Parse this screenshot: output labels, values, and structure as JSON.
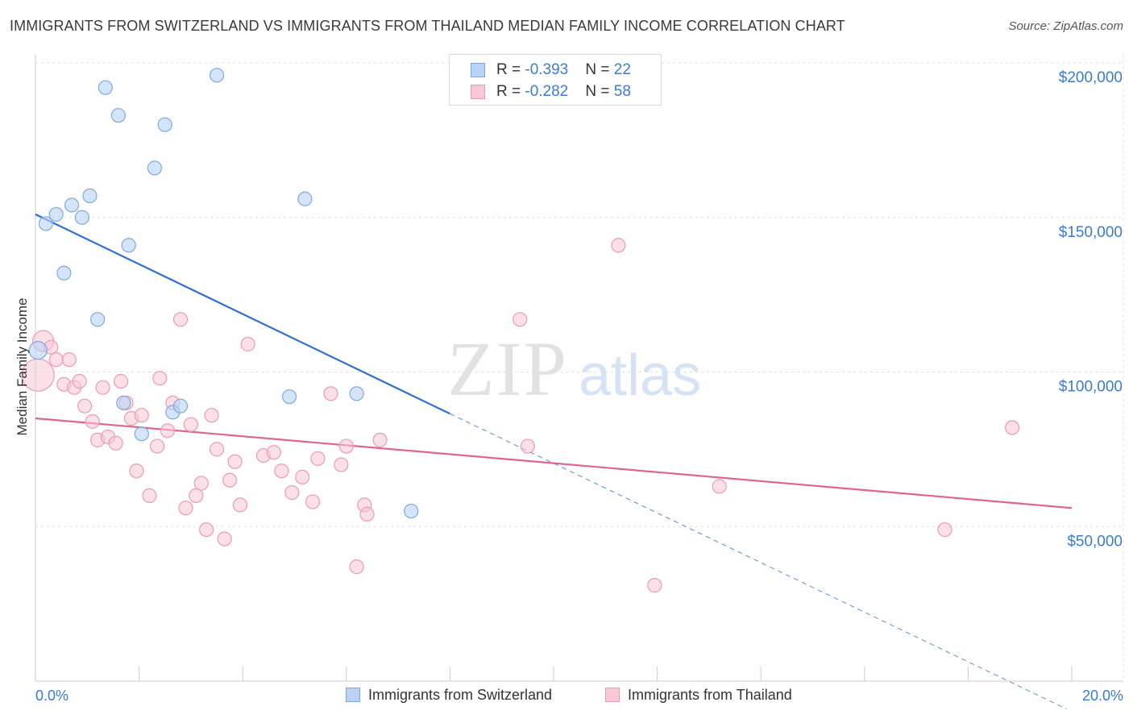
{
  "title": "IMMIGRANTS FROM SWITZERLAND VS IMMIGRANTS FROM THAILAND MEDIAN FAMILY INCOME CORRELATION CHART",
  "source": "Source: ZipAtlas.com",
  "watermark": {
    "zip": "ZIP",
    "atlas": "atlas"
  },
  "colors": {
    "switzerland_fill": "#b8d3f5",
    "switzerland_stroke": "#7fa9de",
    "switzerland_line": "#2f6fd0",
    "thailand_fill": "#f9c7d6",
    "thailand_stroke": "#ec9bb4",
    "thailand_line": "#e0648f",
    "axis_label": "#3a7bd5",
    "grid": "#dddddd"
  },
  "stats_legend": [
    {
      "r_label": "R = ",
      "r_value": "-0.393",
      "n_label": "N = ",
      "n_value": "22"
    },
    {
      "r_label": "R = ",
      "r_value": "-0.282",
      "n_label": "N = ",
      "n_value": "58"
    }
  ],
  "chart_data": {
    "type": "scatter",
    "title": "IMMIGRANTS FROM SWITZERLAND VS IMMIGRANTS FROM THAILAND MEDIAN FAMILY INCOME CORRELATION CHART",
    "xlabel": "",
    "ylabel": "Median Family Income",
    "xlim": [
      0.0,
      20.0
    ],
    "ylim": [
      0,
      210000
    ],
    "x_tick_labels": [
      "0.0%",
      "20.0%"
    ],
    "y_ticks": [
      50000,
      100000,
      150000,
      200000
    ],
    "y_tick_labels": [
      "$50,000",
      "$100,000",
      "$150,000",
      "$200,000"
    ],
    "grid": true,
    "legend_position": "bottom",
    "series": [
      {
        "name": "Immigrants from Switzerland",
        "points": [
          [
            0.05,
            107000
          ],
          [
            0.2,
            148000
          ],
          [
            0.4,
            151000
          ],
          [
            0.55,
            132000
          ],
          [
            0.7,
            154000
          ],
          [
            0.9,
            150000
          ],
          [
            1.05,
            157000
          ],
          [
            1.2,
            117000
          ],
          [
            1.35,
            192000
          ],
          [
            1.6,
            183000
          ],
          [
            1.8,
            141000
          ],
          [
            1.7,
            90000
          ],
          [
            2.05,
            80000
          ],
          [
            2.3,
            166000
          ],
          [
            2.5,
            180000
          ],
          [
            2.65,
            87000
          ],
          [
            2.8,
            89000
          ],
          [
            3.5,
            196000
          ],
          [
            4.9,
            92000
          ],
          [
            5.2,
            156000
          ],
          [
            6.2,
            93000
          ],
          [
            7.25,
            55000
          ]
        ],
        "trend": {
          "x0": 0.0,
          "y0": 151000,
          "x1": 8.0,
          "y1": 86500,
          "dash_x1": 19.9,
          "dash_y1": -9000
        }
      },
      {
        "name": "Immigrants from Thailand",
        "points": [
          [
            0.05,
            99000
          ],
          [
            0.15,
            110000
          ],
          [
            0.3,
            108000
          ],
          [
            0.4,
            104000
          ],
          [
            0.55,
            96000
          ],
          [
            0.65,
            104000
          ],
          [
            0.75,
            95000
          ],
          [
            0.85,
            97000
          ],
          [
            0.95,
            89000
          ],
          [
            1.1,
            84000
          ],
          [
            1.2,
            78000
          ],
          [
            1.3,
            95000
          ],
          [
            1.4,
            79000
          ],
          [
            1.55,
            77000
          ],
          [
            1.65,
            97000
          ],
          [
            1.75,
            90000
          ],
          [
            1.85,
            85000
          ],
          [
            1.95,
            68000
          ],
          [
            2.05,
            86000
          ],
          [
            2.2,
            60000
          ],
          [
            2.35,
            76000
          ],
          [
            2.4,
            98000
          ],
          [
            2.55,
            81000
          ],
          [
            2.65,
            90000
          ],
          [
            2.8,
            117000
          ],
          [
            2.9,
            56000
          ],
          [
            3.0,
            83000
          ],
          [
            3.1,
            60000
          ],
          [
            3.2,
            64000
          ],
          [
            3.3,
            49000
          ],
          [
            3.4,
            86000
          ],
          [
            3.5,
            75000
          ],
          [
            3.65,
            46000
          ],
          [
            3.75,
            65000
          ],
          [
            3.85,
            71000
          ],
          [
            3.95,
            57000
          ],
          [
            4.1,
            109000
          ],
          [
            4.4,
            73000
          ],
          [
            4.6,
            74000
          ],
          [
            4.75,
            68000
          ],
          [
            4.95,
            61000
          ],
          [
            5.15,
            66000
          ],
          [
            5.35,
            58000
          ],
          [
            5.45,
            72000
          ],
          [
            5.7,
            93000
          ],
          [
            5.9,
            70000
          ],
          [
            6.0,
            76000
          ],
          [
            6.2,
            37000
          ],
          [
            6.35,
            57000
          ],
          [
            6.4,
            54000
          ],
          [
            6.65,
            78000
          ],
          [
            9.35,
            117000
          ],
          [
            9.5,
            76000
          ],
          [
            11.25,
            141000
          ],
          [
            11.95,
            31000
          ],
          [
            13.2,
            63000
          ],
          [
            17.55,
            49000
          ],
          [
            18.85,
            82000
          ]
        ],
        "trend": {
          "x0": 0.0,
          "y0": 85000,
          "x1": 20.0,
          "y1": 56000
        }
      }
    ]
  }
}
